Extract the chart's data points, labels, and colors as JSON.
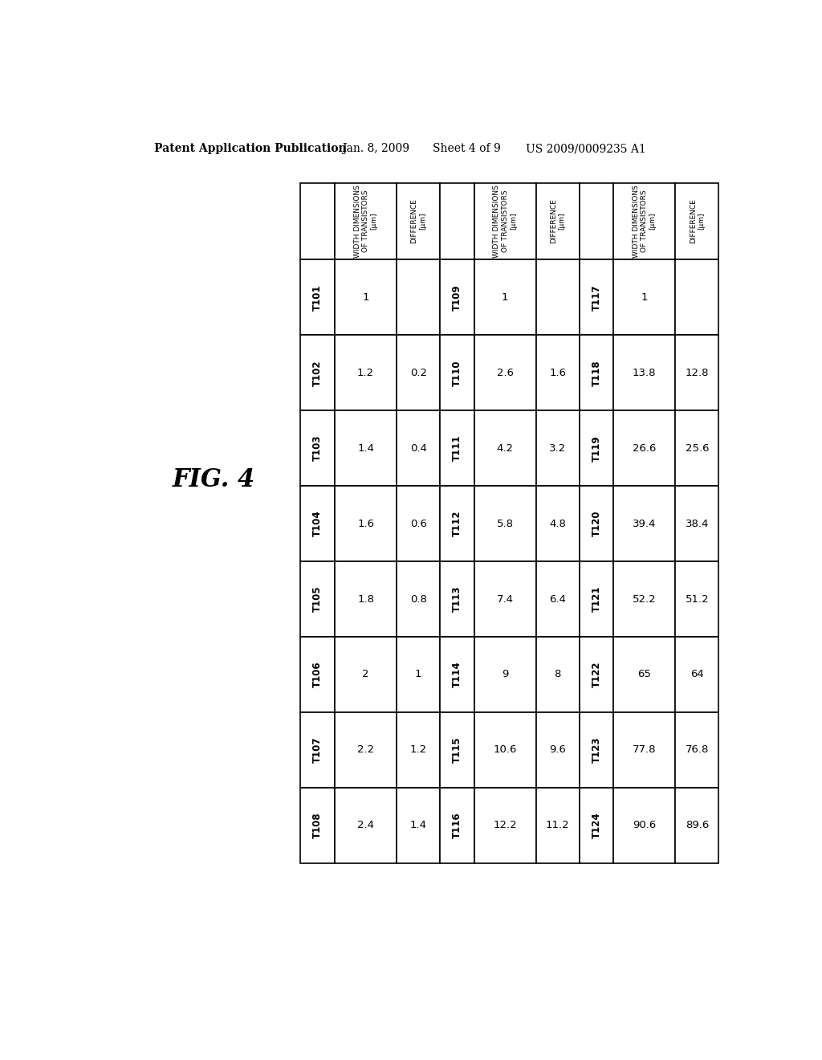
{
  "header_line1": "Patent Application Publication",
  "header_line2": "Jan. 8, 2009",
  "header_line3": "Sheet 4 of 9",
  "header_line4": "US 2009/0009235 A1",
  "fig_label": "FIG. 4",
  "background_color": "#ffffff",
  "text_color": "#000000",
  "col_groups": [
    {
      "transistor_col_header": "WIDTH DIMENSIONS\nOF TRANSISTORS\n[μm]",
      "diff_col_header": "DIFFERENCE\n[μm]",
      "rows": [
        {
          "name": "T101",
          "width": "1",
          "diff": ""
        },
        {
          "name": "T102",
          "width": "1.2",
          "diff": "0.2"
        },
        {
          "name": "T103",
          "width": "1.4",
          "diff": "0.4"
        },
        {
          "name": "T104",
          "width": "1.6",
          "diff": "0.6"
        },
        {
          "name": "T105",
          "width": "1.8",
          "diff": "0.8"
        },
        {
          "name": "T106",
          "width": "2",
          "diff": "1"
        },
        {
          "name": "T107",
          "width": "2.2",
          "diff": "1.2"
        },
        {
          "name": "T108",
          "width": "2.4",
          "diff": "1.4"
        }
      ]
    },
    {
      "transistor_col_header": "WIDTH DIMENSIONS\nOF TRANSISTORS\n[μm]",
      "diff_col_header": "DIFFERENCE\n[μm]",
      "rows": [
        {
          "name": "T109",
          "width": "1",
          "diff": ""
        },
        {
          "name": "T110",
          "width": "2.6",
          "diff": "1.6"
        },
        {
          "name": "T111",
          "width": "4.2",
          "diff": "3.2"
        },
        {
          "name": "T112",
          "width": "5.8",
          "diff": "4.8"
        },
        {
          "name": "T113",
          "width": "7.4",
          "diff": "6.4"
        },
        {
          "name": "T114",
          "width": "9",
          "diff": "8"
        },
        {
          "name": "T115",
          "width": "10.6",
          "diff": "9.6"
        },
        {
          "name": "T116",
          "width": "12.2",
          "diff": "11.2"
        }
      ]
    },
    {
      "transistor_col_header": "WIDTH DIMENSIONS\nOF TRANSISTORS\n[μm]",
      "diff_col_header": "DIFFERENCE\n[μm]",
      "rows": [
        {
          "name": "T117",
          "width": "1",
          "diff": ""
        },
        {
          "name": "T118",
          "width": "13.8",
          "diff": "12.8"
        },
        {
          "name": "T119",
          "width": "26.6",
          "diff": "25.6"
        },
        {
          "name": "T120",
          "width": "39.4",
          "diff": "38.4"
        },
        {
          "name": "T121",
          "width": "52.2",
          "diff": "51.2"
        },
        {
          "name": "T122",
          "width": "65",
          "diff": "64"
        },
        {
          "name": "T123",
          "width": "77.8",
          "diff": "76.8"
        },
        {
          "name": "T124",
          "width": "90.6",
          "diff": "89.6"
        }
      ]
    }
  ]
}
